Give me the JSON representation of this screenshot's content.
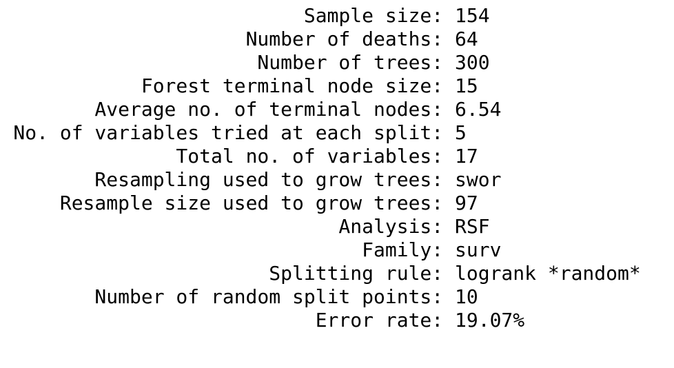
{
  "summary": {
    "rows": [
      {
        "label": "Sample size: ",
        "value": "154"
      },
      {
        "label": "Number of deaths: ",
        "value": "64"
      },
      {
        "label": "Number of trees: ",
        "value": "300"
      },
      {
        "label": "Forest terminal node size: ",
        "value": "15"
      },
      {
        "label": "Average no. of terminal nodes: ",
        "value": "6.54"
      },
      {
        "label": "No. of variables tried at each split: ",
        "value": "5"
      },
      {
        "label": "Total no. of variables: ",
        "value": "17"
      },
      {
        "label": "Resampling used to grow trees: ",
        "value": "swor"
      },
      {
        "label": "Resample size used to grow trees: ",
        "value": "97"
      },
      {
        "label": "Analysis: ",
        "value": "RSF"
      },
      {
        "label": "Family: ",
        "value": "surv"
      },
      {
        "label": "Splitting rule: ",
        "value": "logrank *random*"
      },
      {
        "label": "Number of random split points: ",
        "value": "10"
      },
      {
        "label": "Error rate: ",
        "value": "19.07%"
      }
    ]
  }
}
